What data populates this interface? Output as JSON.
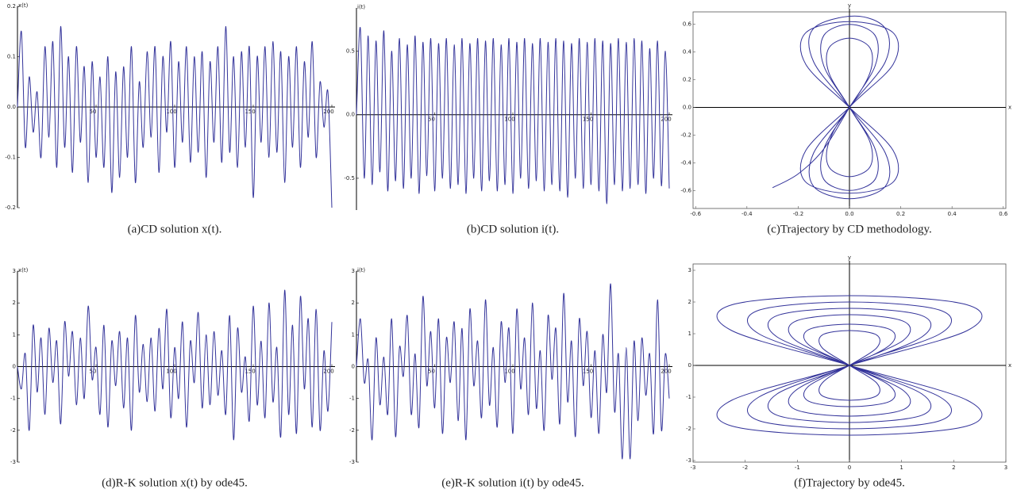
{
  "chart_data": [
    {
      "type": "line",
      "caption": "(a)CD solution x(t).",
      "ylabel": "x(t)",
      "color": "#33339a",
      "frame": false,
      "xlim": [
        0,
        200
      ],
      "ylim": [
        -0.2,
        0.2
      ],
      "xticks": [
        50,
        100,
        150,
        200
      ],
      "yticks": [
        -0.2,
        -0.1,
        {
          "value": 0,
          "label": "0.0"
        },
        0.1,
        0.2
      ],
      "x": [
        0,
        2.5,
        5,
        7.5,
        10,
        12.5,
        15,
        17.5,
        20,
        22.5,
        25,
        27.5,
        30,
        32.5,
        35,
        37.5,
        40,
        42.5,
        45,
        47.5,
        50,
        52.5,
        55,
        57.5,
        60,
        62.5,
        65,
        67.5,
        70,
        72.5,
        75,
        77.5,
        80,
        82.5,
        85,
        87.5,
        90,
        92.5,
        95,
        97.5,
        100,
        102.5,
        105,
        107.5,
        110,
        112.5,
        115,
        117.5,
        120,
        122.5,
        125,
        127.5,
        130,
        132.5,
        135,
        137.5,
        140,
        142.5,
        145,
        147.5,
        150,
        152.5,
        155,
        157.5,
        160,
        162.5,
        165,
        167.5,
        170,
        172.5,
        175,
        177.5,
        180,
        182.5,
        185,
        187.5,
        190,
        192.5,
        195,
        197.5,
        200
      ],
      "values": [
        0,
        0.15,
        -0.08,
        0.06,
        -0.05,
        0.03,
        -0.1,
        0.12,
        -0.06,
        0.13,
        -0.12,
        0.16,
        -0.08,
        0.1,
        -0.13,
        0.12,
        -0.07,
        0.08,
        -0.15,
        0.09,
        -0.1,
        0.06,
        -0.12,
        0.1,
        -0.17,
        0.07,
        -0.14,
        0.08,
        -0.1,
        0.12,
        -0.15,
        0.05,
        -0.08,
        0.11,
        -0.06,
        0.12,
        -0.13,
        0.1,
        -0.05,
        0.13,
        -0.12,
        0.09,
        -0.07,
        0.12,
        -0.11,
        0.1,
        -0.09,
        0.11,
        -0.14,
        0.09,
        -0.07,
        0.12,
        -0.11,
        0.16,
        -0.09,
        0.1,
        -0.12,
        0.11,
        -0.08,
        0.12,
        -0.18,
        0.1,
        -0.07,
        0.12,
        -0.1,
        0.13,
        -0.09,
        0.11,
        -0.15,
        0.1,
        -0.08,
        0.12,
        -0.12,
        0.09,
        -0.06,
        0.13,
        -0.1,
        0.05,
        -0.04,
        0.03,
        -0.2
      ]
    },
    {
      "type": "line",
      "caption": "(b)CD solution i(t).",
      "ylabel": "i(t)",
      "color": "#33339a",
      "frame": false,
      "xlim": [
        0,
        200
      ],
      "ylim": [
        -0.75,
        0.84
      ],
      "xticks": [
        50,
        100,
        150,
        200
      ],
      "yticks": [
        -0.5,
        {
          "value": 0,
          "label": "0.0"
        },
        0.5
      ],
      "x": [
        0,
        2.5,
        5,
        7.5,
        10,
        12.5,
        15,
        17.5,
        20,
        22.5,
        25,
        27.5,
        30,
        32.5,
        35,
        37.5,
        40,
        42.5,
        45,
        47.5,
        50,
        52.5,
        55,
        57.5,
        60,
        62.5,
        65,
        67.5,
        70,
        72.5,
        75,
        77.5,
        80,
        82.5,
        85,
        87.5,
        90,
        92.5,
        95,
        97.5,
        100,
        102.5,
        105,
        107.5,
        110,
        112.5,
        115,
        117.5,
        120,
        122.5,
        125,
        127.5,
        130,
        132.5,
        135,
        137.5,
        140,
        142.5,
        145,
        147.5,
        150,
        152.5,
        155,
        157.5,
        160,
        162.5,
        165,
        167.5,
        170,
        172.5,
        175,
        177.5,
        180,
        182.5,
        185,
        187.5,
        190,
        192.5,
        195,
        197.5,
        200
      ],
      "values": [
        0,
        0.68,
        -0.5,
        0.62,
        -0.55,
        0.58,
        -0.45,
        0.66,
        -0.6,
        0.5,
        -0.52,
        0.6,
        -0.58,
        0.55,
        -0.5,
        0.62,
        -0.62,
        0.57,
        -0.48,
        0.6,
        -0.6,
        0.56,
        -0.5,
        0.6,
        -0.58,
        0.55,
        -0.55,
        0.6,
        -0.62,
        0.56,
        -0.5,
        0.6,
        -0.6,
        0.58,
        -0.52,
        0.6,
        -0.6,
        0.55,
        -0.55,
        0.6,
        -0.62,
        0.57,
        -0.5,
        0.6,
        -0.58,
        0.56,
        -0.52,
        0.6,
        -0.6,
        0.57,
        -0.55,
        0.6,
        -0.6,
        0.58,
        -0.65,
        0.56,
        -0.5,
        0.6,
        -0.58,
        0.57,
        -0.55,
        0.6,
        -0.6,
        0.58,
        -0.7,
        0.56,
        -0.55,
        0.6,
        -0.6,
        0.57,
        -0.58,
        0.6,
        -0.55,
        0.58,
        -0.62,
        0.52,
        -0.5,
        0.58,
        -0.56,
        0.5,
        -0.58
      ]
    },
    {
      "type": "line",
      "caption": "(c)Trajectory by CD methodology.",
      "xlabel": "x",
      "ylabel": "y",
      "color": "#33339a",
      "frame": true,
      "xlim": [
        -0.61,
        0.61
      ],
      "ylim": [
        -0.73,
        0.69
      ],
      "xticks": [
        -0.6,
        -0.4,
        -0.2,
        {
          "value": 0,
          "label": "0.0"
        },
        0.2,
        0.4,
        0.6
      ],
      "yticks": [
        -0.6,
        -0.4,
        -0.2,
        {
          "value": 0,
          "label": "0.0"
        },
        0.2,
        0.4,
        0.6
      ],
      "x": [
        -0.3,
        -0.2,
        -0.1,
        0,
        0.1,
        0.1,
        0,
        -0.1,
        -0.1,
        0,
        0.1,
        0.1,
        0,
        -0.1,
        -0.1,
        0,
        0.14,
        0.14,
        0.02,
        -0.14,
        -0.14,
        0,
        0.14,
        0.14,
        0,
        -0.14,
        -0.14,
        0,
        0.08,
        0.08,
        0,
        -0.08,
        -0.08,
        0,
        0.08,
        0.08,
        0,
        -0.08,
        -0.08,
        0,
        0.17,
        0.17,
        0,
        -0.17,
        -0.17,
        0,
        0.17,
        0.17,
        0,
        -0.17,
        -0.17,
        0
      ],
      "values": [
        -0.58,
        -0.48,
        -0.3,
        0,
        0.3,
        0.52,
        0.6,
        0.52,
        0.3,
        0,
        -0.3,
        -0.52,
        -0.6,
        -0.52,
        -0.3,
        0,
        0.33,
        0.57,
        0.66,
        0.57,
        0.33,
        0,
        -0.33,
        -0.57,
        -0.66,
        -0.57,
        -0.33,
        0,
        0.25,
        0.43,
        0.5,
        0.43,
        0.25,
        0,
        -0.25,
        -0.43,
        -0.5,
        -0.43,
        -0.25,
        0,
        0.31,
        0.54,
        0.62,
        0.54,
        0.31,
        0,
        -0.31,
        -0.54,
        -0.62,
        -0.54,
        -0.31,
        0
      ]
    },
    {
      "type": "line",
      "caption": "(d)R-K solution x(t) by ode45.",
      "ylabel": "x(t)",
      "color": "#33339a",
      "frame": false,
      "xlim": [
        0,
        200
      ],
      "ylim": [
        -3,
        3
      ],
      "xticks": [
        50,
        100,
        150,
        200
      ],
      "yticks": [
        -3,
        -2,
        -1,
        0,
        1,
        2,
        3
      ],
      "x": [
        0,
        2.5,
        5,
        7.5,
        10,
        12.5,
        15,
        17.5,
        20,
        22.5,
        25,
        27.5,
        30,
        32.5,
        35,
        37.5,
        40,
        42.5,
        45,
        47.5,
        50,
        52.5,
        55,
        57.5,
        60,
        62.5,
        65,
        67.5,
        70,
        72.5,
        75,
        77.5,
        80,
        82.5,
        85,
        87.5,
        90,
        92.5,
        95,
        97.5,
        100,
        102.5,
        105,
        107.5,
        110,
        112.5,
        115,
        117.5,
        120,
        122.5,
        125,
        127.5,
        130,
        132.5,
        135,
        137.5,
        140,
        142.5,
        145,
        147.5,
        150,
        152.5,
        155,
        157.5,
        160,
        162.5,
        165,
        167.5,
        170,
        172.5,
        175,
        177.5,
        180,
        182.5,
        185,
        187.5,
        190,
        192.5,
        195,
        197.5,
        200
      ],
      "values": [
        0,
        -0.7,
        0.4,
        -2,
        1.3,
        -0.8,
        0.9,
        -1.5,
        1.2,
        -0.5,
        0.8,
        -1.8,
        1.4,
        -0.3,
        1.1,
        -1.2,
        0.9,
        -1,
        1.9,
        -0.4,
        0.6,
        -1.5,
        1.3,
        -1.9,
        0.8,
        -0.6,
        1.1,
        -1.3,
        0.9,
        -2,
        1.6,
        -0.8,
        0.7,
        -1.1,
        0.9,
        -1.4,
        1.2,
        -0.7,
        1.8,
        -1.6,
        0.6,
        -1,
        1.4,
        -1.9,
        0.8,
        -0.5,
        1.7,
        -1.3,
        1,
        -1.2,
        1.1,
        -0.9,
        0.5,
        -1.5,
        1.6,
        -2.3,
        1.2,
        -0.8,
        0.3,
        -1.7,
        1.9,
        -1.2,
        0.8,
        -1.6,
        2,
        -1.1,
        0.6,
        -2.2,
        2.4,
        -1.5,
        1.3,
        -2.1,
        2.2,
        -0.7,
        1.5,
        -1.9,
        1.8,
        -2,
        0.5,
        -1.4,
        1.4
      ]
    },
    {
      "type": "line",
      "caption": "(e)R-K solution i(t) by ode45.",
      "ylabel": "i(t)",
      "color": "#33339a",
      "frame": false,
      "xlim": [
        0,
        200
      ],
      "ylim": [
        -3,
        3
      ],
      "xticks": [
        50,
        100,
        150,
        200
      ],
      "yticks": [
        -3,
        -2,
        -1,
        0,
        1,
        2,
        3
      ],
      "x": [
        0,
        2.5,
        5,
        7.5,
        10,
        12.5,
        15,
        17.5,
        20,
        22.5,
        25,
        27.5,
        30,
        32.5,
        35,
        37.5,
        40,
        42.5,
        45,
        47.5,
        50,
        52.5,
        55,
        57.5,
        60,
        62.5,
        65,
        67.5,
        70,
        72.5,
        75,
        77.5,
        80,
        82.5,
        85,
        87.5,
        90,
        92.5,
        95,
        97.5,
        100,
        102.5,
        105,
        107.5,
        110,
        112.5,
        115,
        117.5,
        120,
        122.5,
        125,
        127.5,
        130,
        132.5,
        135,
        137.5,
        140,
        142.5,
        145,
        147.5,
        150,
        152.5,
        155,
        157.5,
        160,
        162.5,
        165,
        167.5,
        170,
        172.5,
        175,
        177.5,
        180,
        182.5,
        185,
        187.5,
        190,
        192.5,
        195,
        197.5,
        200
      ],
      "values": [
        0,
        1.5,
        -0.5,
        0.2,
        -2.3,
        0.9,
        -1.2,
        0.3,
        -1.5,
        1.5,
        -2.2,
        0.6,
        -0.3,
        1.6,
        -1.5,
        0.4,
        -1.9,
        2.2,
        -0.6,
        1.1,
        -1.3,
        1.5,
        -2.1,
        0.9,
        -0.5,
        1.4,
        -1.7,
        1.2,
        -2.3,
        1.8,
        -0.6,
        0.8,
        -1.6,
        2.1,
        -1.2,
        0.6,
        -1.9,
        1.4,
        -0.5,
        1.2,
        -2.1,
        1.8,
        -0.7,
        0.9,
        -1.5,
        2,
        -1.3,
        0.5,
        -2,
        1.6,
        -0.4,
        1.2,
        -1.8,
        2.3,
        -1.1,
        0.8,
        -2.2,
        1.5,
        -0.6,
        1.1,
        -1.6,
        0.5,
        -2.1,
        1,
        -0.8,
        2.6,
        -1.4,
        0.4,
        -2.9,
        0.6,
        -2.9,
        0.8,
        -1.7,
        0.9,
        -0.9,
        0.4,
        -2.1,
        2.1,
        -2,
        0.4,
        -1
      ]
    },
    {
      "type": "line",
      "caption": "(f)Trajectory by ode45.",
      "xlabel": "x",
      "ylabel": "y",
      "color": "#33339a",
      "frame": true,
      "xlim": [
        -3,
        3
      ],
      "ylim": [
        -3.05,
        3.2
      ],
      "xticks": [
        -3,
        -2,
        -1,
        0,
        1,
        2,
        3
      ],
      "yticks": [
        -3,
        -2,
        -1,
        0,
        1,
        2,
        3
      ],
      "x": [
        0,
        0.52,
        0.52,
        0,
        -0.52,
        -0.52,
        0,
        0.52,
        0.52,
        0,
        -0.52,
        -0.52,
        0,
        1.04,
        1.04,
        0,
        -1.04,
        -1.04,
        0,
        1.04,
        1.04,
        0,
        -1.04,
        -1.04,
        0,
        1.74,
        1.74,
        0,
        -1.74,
        -1.74,
        0,
        1.74,
        1.74,
        0,
        -1.74,
        -1.74,
        0,
        2.26,
        2.26,
        0,
        -2.26,
        -2.26,
        0,
        2.26,
        2.26,
        0,
        -2.26,
        -2.26,
        0,
        1.39,
        1.39,
        0,
        -1.39,
        -1.39,
        0,
        1.39,
        1.39,
        0,
        -1.39,
        -1.39,
        0,
        0.78,
        0.78,
        0,
        -0.78,
        -0.78,
        0,
        0.78,
        0.78,
        0,
        -0.78,
        -0.78,
        0
      ],
      "values": [
        0,
        0.55,
        0.96,
        1.1,
        0.96,
        0.55,
        0,
        -0.55,
        -0.96,
        -1.1,
        -0.96,
        -0.55,
        0,
        0.8,
        1.39,
        1.6,
        1.39,
        0.8,
        0,
        -0.8,
        -1.39,
        -1.6,
        -1.39,
        -0.8,
        0,
        1,
        1.74,
        2,
        1.74,
        1,
        0,
        -1,
        -1.74,
        -2,
        -1.74,
        -1,
        0,
        1.1,
        1.91,
        2.2,
        1.91,
        1.1,
        0,
        -1.1,
        -1.91,
        -2.2,
        -1.91,
        -1.1,
        0,
        0.9,
        1.57,
        1.8,
        1.57,
        0.9,
        0,
        -0.9,
        -1.57,
        -1.8,
        -1.57,
        -0.9,
        0,
        0.65,
        1.13,
        1.3,
        1.13,
        0.65,
        0,
        -0.65,
        -1.13,
        -1.3,
        -1.13,
        -0.65,
        0
      ]
    }
  ]
}
